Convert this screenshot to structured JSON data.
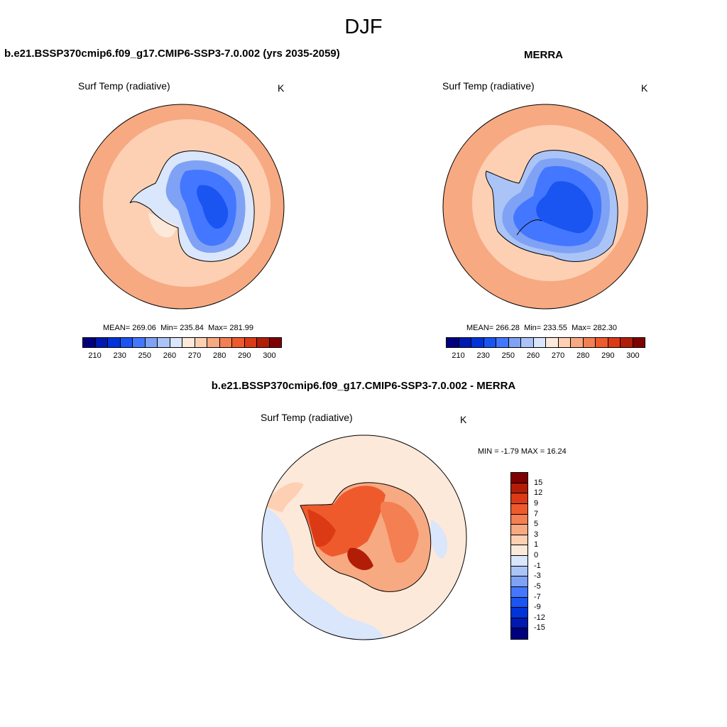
{
  "title": "DJF",
  "panels": [
    {
      "title": "b.e21.BSSP370cmip6.f09_g17.CMIP6-SSP3-7.0.002 (yrs 2035-2059)",
      "variable": "Surf Temp (radiative)",
      "units": "K",
      "mean_label": "MEAN=",
      "mean": "269.06",
      "min_label": "Min=",
      "min": "235.84",
      "max_label": "Max=",
      "max": "281.99"
    },
    {
      "title": "MERRA",
      "variable": "Surf Temp (radiative)",
      "units": "K",
      "mean_label": "MEAN=",
      "mean": "266.28",
      "min_label": "Min=",
      "min": "233.55",
      "max_label": "Max=",
      "max": "282.30"
    },
    {
      "title": "b.e21.BSSP370cmip6.f09_g17.CMIP6-SSP3-7.0.002 - MERRA",
      "variable": "Surf Temp (radiative)",
      "units": "K",
      "min_label": "MIN =",
      "min": "-1.79",
      "max_label": "MAX =",
      "max": "16.24"
    }
  ],
  "abs_colorbar": {
    "colors": [
      "#00007f",
      "#0019b0",
      "#0033d9",
      "#1a55f2",
      "#4477ff",
      "#7fa2f5",
      "#aac4f7",
      "#d9e6fb",
      "#fde9d9",
      "#fdd0b4",
      "#f7a982",
      "#f47f52",
      "#ef5a2c",
      "#db3a14",
      "#b21d08",
      "#7f0000"
    ],
    "ticks": [
      "210",
      "230",
      "250",
      "260",
      "270",
      "280",
      "290",
      "300"
    ]
  },
  "diff_colorbar": {
    "colors": [
      "#7f0000",
      "#b21d08",
      "#db3a14",
      "#ef5a2c",
      "#f47f52",
      "#f7a982",
      "#fdd0b4",
      "#fde9d9",
      "#d9e6fb",
      "#aac4f7",
      "#7fa2f5",
      "#4477ff",
      "#1a55f2",
      "#0033d9",
      "#0019b0",
      "#00007f"
    ],
    "ticks": [
      "15",
      "12",
      "9",
      "7",
      "5",
      "3",
      "1",
      "0",
      "-1",
      "-3",
      "-5",
      "-7",
      "-9",
      "-12",
      "-15"
    ]
  }
}
